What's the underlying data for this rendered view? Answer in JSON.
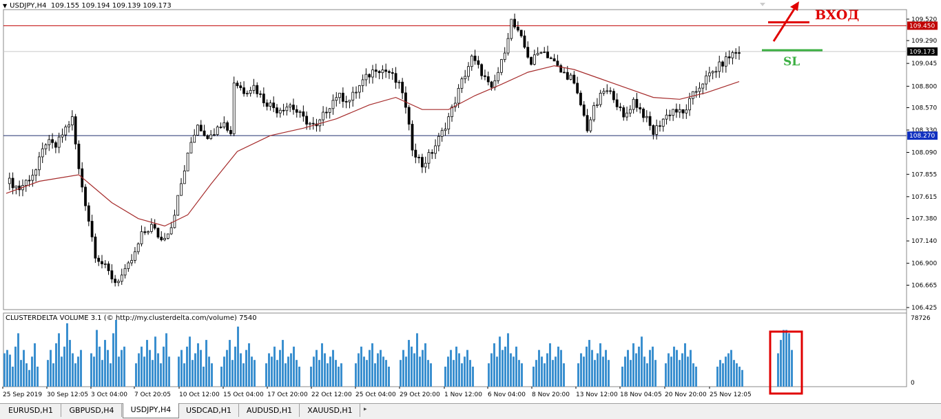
{
  "header": {
    "symbol": "USDJPY,H4",
    "ohlc": "109.155 109.194 109.139 109.173"
  },
  "price_axis": {
    "ticks": [
      "109.520",
      "109.290",
      "109.045",
      "108.800",
      "108.570",
      "108.330",
      "108.090",
      "107.855",
      "107.615",
      "107.380",
      "107.140",
      "106.900",
      "106.665",
      "106.425"
    ],
    "red_line_label": "109.450",
    "current_label": "109.173",
    "blue_line_label": "108.270"
  },
  "annotations": {
    "entry_label": "ВХОД",
    "sl_label": "SL"
  },
  "indicator": {
    "title": "CLUSTERDELTA VOLUME 3.1 (© http://my.clusterdelta.com/volume) 7540",
    "max_label": "78726",
    "zero_label": "0"
  },
  "time_axis": {
    "labels": [
      "25 Sep 2019",
      "30 Sep 12:05",
      "3 Oct 04:00",
      "7 Oct 20:05",
      "10 Oct 12:00",
      "15 Oct 04:00",
      "17 Oct 20:00",
      "22 Oct 12:00",
      "25 Oct 04:00",
      "29 Oct 20:00",
      "1 Nov 12:00",
      "6 Nov 04:00",
      "8 Nov 20:00",
      "13 Nov 12:00",
      "18 Nov 04:05",
      "20 Nov 20:00",
      "25 Nov 12:05"
    ]
  },
  "tabs": [
    {
      "label": "EURUSD,H1",
      "active": false
    },
    {
      "label": "GBPUSD,H4",
      "active": false
    },
    {
      "label": "USDJPY,H4",
      "active": true
    },
    {
      "label": "USDCAD,H1",
      "active": false
    },
    {
      "label": "AUDUSD,H1",
      "active": false
    },
    {
      "label": "XAUUSD,H1",
      "active": false
    }
  ],
  "colors": {
    "candle": "#000000",
    "ma": "#a52a2a",
    "red_line": "#c00000",
    "blue_line": "#1f2d6e",
    "volume": "#3a8fcf",
    "entry": "#e00000",
    "sl": "#3cb043",
    "highlight_box": "#e00000",
    "current_price_bg": "#000000",
    "blue_label_bg": "#1030c0"
  },
  "chart_data": {
    "type": "candlestick",
    "symbol": "USDJPY",
    "timeframe": "H4",
    "ylim": [
      106.425,
      109.6
    ],
    "horizontal_lines": [
      {
        "price": 109.45,
        "color": "red"
      },
      {
        "price": 108.27,
        "color": "blue"
      }
    ],
    "current_price": 109.173,
    "close_path": [
      [
        0,
        107.8
      ],
      [
        4,
        107.7
      ],
      [
        9,
        107.9
      ],
      [
        12,
        108.2
      ],
      [
        15,
        108.15
      ],
      [
        18,
        108.35
      ],
      [
        20,
        108.45
      ],
      [
        22,
        107.9
      ],
      [
        24,
        107.55
      ],
      [
        27,
        107.0
      ],
      [
        30,
        106.85
      ],
      [
        33,
        106.7
      ],
      [
        36,
        106.8
      ],
      [
        39,
        107.0
      ],
      [
        41,
        107.2
      ],
      [
        44,
        107.3
      ],
      [
        47,
        107.15
      ],
      [
        50,
        107.3
      ],
      [
        52,
        107.6
      ],
      [
        54,
        107.9
      ],
      [
        56,
        108.2
      ],
      [
        58,
        108.4
      ],
      [
        60,
        108.3
      ],
      [
        62,
        108.25
      ],
      [
        64,
        108.4
      ],
      [
        66,
        108.4
      ],
      [
        68,
        108.3
      ],
      [
        69,
        108.85
      ],
      [
        72,
        108.75
      ],
      [
        75,
        108.8
      ],
      [
        78,
        108.65
      ],
      [
        82,
        108.55
      ],
      [
        86,
        108.6
      ],
      [
        90,
        108.45
      ],
      [
        94,
        108.35
      ],
      [
        97,
        108.55
      ],
      [
        100,
        108.7
      ],
      [
        104,
        108.65
      ],
      [
        108,
        108.85
      ],
      [
        112,
        109.0
      ],
      [
        116,
        108.95
      ],
      [
        120,
        108.75
      ],
      [
        123,
        108.15
      ],
      [
        126,
        107.95
      ],
      [
        129,
        108.1
      ],
      [
        132,
        108.3
      ],
      [
        135,
        108.55
      ],
      [
        138,
        108.85
      ],
      [
        141,
        109.1
      ],
      [
        144,
        108.95
      ],
      [
        147,
        108.75
      ],
      [
        150,
        109.05
      ],
      [
        153,
        109.5
      ],
      [
        156,
        109.3
      ],
      [
        159,
        109.05
      ],
      [
        162,
        109.2
      ],
      [
        165,
        109.1
      ],
      [
        168,
        108.95
      ],
      [
        171,
        108.9
      ],
      [
        174,
        108.6
      ],
      [
        176,
        108.35
      ],
      [
        178,
        108.55
      ],
      [
        181,
        108.75
      ],
      [
        184,
        108.7
      ],
      [
        187,
        108.45
      ],
      [
        190,
        108.65
      ],
      [
        193,
        108.5
      ],
      [
        196,
        108.3
      ],
      [
        199,
        108.45
      ],
      [
        202,
        108.55
      ],
      [
        205,
        108.5
      ],
      [
        208,
        108.7
      ],
      [
        211,
        108.85
      ],
      [
        214,
        108.95
      ],
      [
        217,
        109.05
      ],
      [
        220,
        109.15
      ],
      [
        222,
        109.173
      ]
    ],
    "moving_average": [
      [
        0,
        107.65
      ],
      [
        10,
        107.78
      ],
      [
        22,
        107.85
      ],
      [
        32,
        107.55
      ],
      [
        40,
        107.38
      ],
      [
        48,
        107.3
      ],
      [
        55,
        107.42
      ],
      [
        62,
        107.75
      ],
      [
        70,
        108.1
      ],
      [
        80,
        108.27
      ],
      [
        90,
        108.35
      ],
      [
        100,
        108.45
      ],
      [
        110,
        108.6
      ],
      [
        118,
        108.68
      ],
      [
        126,
        108.55
      ],
      [
        134,
        108.55
      ],
      [
        142,
        108.7
      ],
      [
        150,
        108.82
      ],
      [
        158,
        108.95
      ],
      [
        166,
        109.02
      ],
      [
        172,
        108.98
      ],
      [
        180,
        108.88
      ],
      [
        188,
        108.78
      ],
      [
        196,
        108.68
      ],
      [
        204,
        108.66
      ],
      [
        212,
        108.73
      ],
      [
        222,
        108.85
      ]
    ],
    "volume": {
      "ylim": [
        0,
        78726
      ],
      "days": [
        [
          50,
          55,
          48,
          30,
          60,
          80,
          40,
          55,
          35,
          25,
          45,
          65,
          30
        ],
        [
          40,
          55,
          35,
          65,
          80,
          45,
          60,
          95,
          70,
          50,
          35,
          45,
          55
        ],
        [
          50,
          45,
          85,
          60,
          40,
          70,
          55,
          35,
          80,
          100,
          45,
          55,
          60
        ],
        [
          35,
          50,
          60,
          45,
          70,
          55,
          40,
          75,
          50,
          35,
          60,
          80,
          45
        ],
        [
          45,
          55,
          35,
          60,
          75,
          40,
          50,
          65,
          55,
          30,
          70,
          45,
          35
        ],
        [
          30,
          45,
          55,
          70,
          40,
          60,
          90,
          50,
          35,
          55,
          65,
          45,
          40
        ],
        [
          35,
          50,
          45,
          60,
          40,
          55,
          70,
          35,
          45,
          50,
          60,
          40,
          30
        ],
        [
          30,
          45,
          55,
          40,
          65,
          50,
          35,
          45,
          55,
          40,
          30,
          35
        ],
        [
          35,
          50,
          60,
          45,
          40,
          55,
          65,
          35,
          50,
          55,
          45,
          40,
          30
        ],
        [
          40,
          55,
          45,
          70,
          60,
          50,
          80,
          45,
          55,
          65,
          40,
          35
        ],
        [
          30,
          45,
          55,
          40,
          60,
          50,
          35,
          45,
          55,
          40,
          30
        ],
        [
          35,
          50,
          65,
          45,
          75,
          55,
          60,
          80,
          50,
          45,
          60,
          40,
          35
        ],
        [
          30,
          40,
          55,
          45,
          35,
          50,
          65,
          40,
          45,
          60,
          55,
          35
        ],
        [
          35,
          50,
          45,
          60,
          70,
          55,
          40,
          50,
          65,
          45,
          55,
          40
        ],
        [
          30,
          45,
          55,
          40,
          65,
          50,
          60,
          75,
          45,
          35,
          55,
          60,
          40
        ],
        [
          35,
          50,
          45,
          60,
          55,
          40,
          50,
          65,
          45,
          55,
          35,
          30
        ],
        [
          30,
          40,
          35,
          45,
          50,
          55,
          40,
          35,
          30,
          25
        ]
      ],
      "highlighted": [
        50,
        70,
        85,
        85,
        80,
        55
      ]
    }
  }
}
